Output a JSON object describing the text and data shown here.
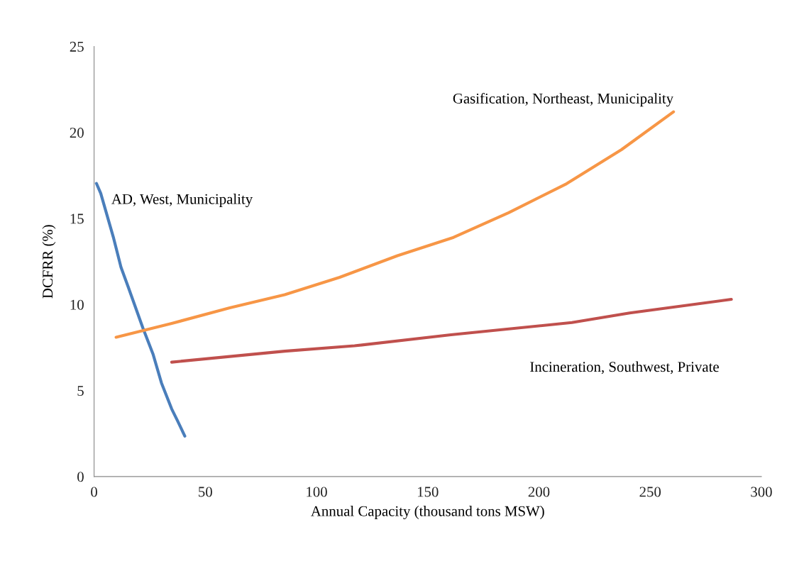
{
  "chart_data": {
    "type": "line",
    "xlabel": "Annual Capacity (thousand tons MSW)",
    "ylabel": "DCFRR (%)",
    "xlim": [
      0,
      300
    ],
    "xticks": [
      0,
      50,
      100,
      150,
      200,
      250,
      300
    ],
    "ylim": [
      0,
      25
    ],
    "yticks": [
      0,
      5,
      10,
      15,
      20,
      25
    ],
    "grid": false,
    "legend": false,
    "series": [
      {
        "name": "AD, West, Municipality",
        "color": "#4a7ebb",
        "x": [
          1.05,
          3.0,
          8.8,
          12.1,
          15.4,
          21.9,
          26.5,
          30.3,
          34.9,
          37.5,
          40.8
        ],
        "values": [
          17.04,
          16.46,
          13.85,
          12.17,
          11.0,
          8.65,
          7.12,
          5.44,
          3.93,
          3.25,
          2.35
        ]
      },
      {
        "name": "Gasification, Northeast, Municipality",
        "color": "#f79646",
        "x": [
          9.9,
          34.9,
          61.0,
          85.7,
          110.4,
          136.4,
          161.6,
          186.4,
          212.4,
          237.1,
          260.5
        ],
        "values": [
          8.1,
          8.9,
          9.81,
          10.57,
          11.58,
          12.84,
          13.9,
          15.34,
          17.02,
          19.0,
          21.2
        ]
      },
      {
        "name": "Incineration, Southwest, Private",
        "color": "#c0504d",
        "x": [
          34.9,
          85.7,
          117.1,
          160.4,
          214.8,
          240.8,
          286.5
        ],
        "values": [
          6.65,
          7.29,
          7.6,
          8.24,
          8.95,
          9.51,
          10.3
        ]
      }
    ]
  }
}
